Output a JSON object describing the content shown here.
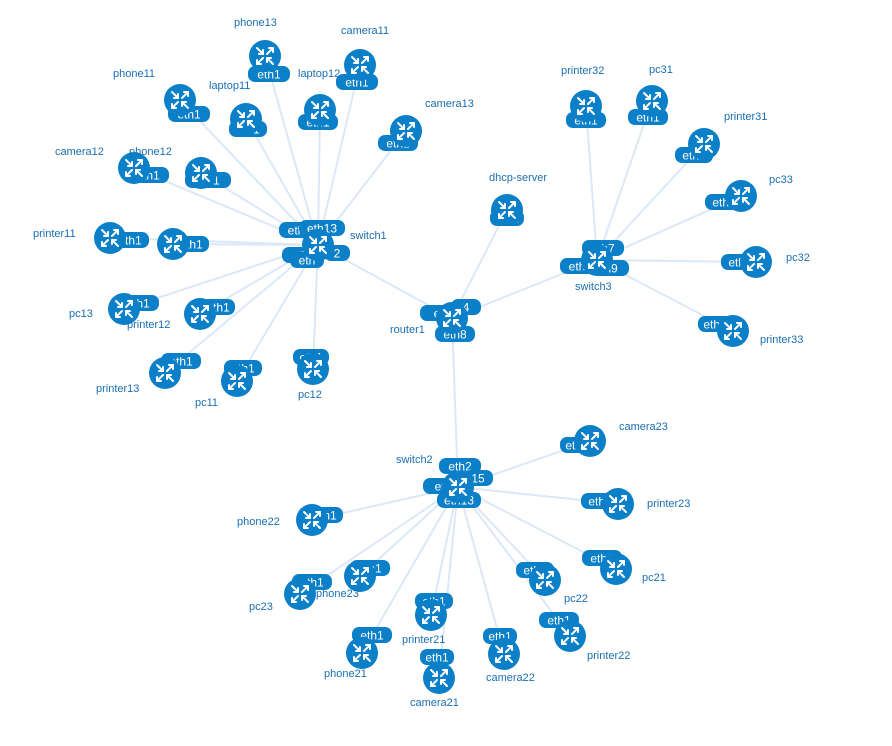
{
  "colors": {
    "node": "#0b7fc7",
    "link": "#dbe8f7",
    "label": "#1a6fb3",
    "iface_text": "#ffffff"
  },
  "icon": "router-arrows-icon",
  "nodes": [
    {
      "id": "switch1",
      "label": "switch1"
    },
    {
      "id": "switch2",
      "label": "switch2"
    },
    {
      "id": "switch3",
      "label": "switch3"
    },
    {
      "id": "router1",
      "label": "router1"
    },
    {
      "id": "dhcp-server",
      "label": "dhcp-server"
    },
    {
      "id": "phone13",
      "label": "phone13"
    },
    {
      "id": "camera11",
      "label": "camera11"
    },
    {
      "id": "phone11",
      "label": "phone11"
    },
    {
      "id": "laptop11",
      "label": "laptop11"
    },
    {
      "id": "laptop12",
      "label": "laptop12"
    },
    {
      "id": "camera13",
      "label": "camera13"
    },
    {
      "id": "camera12",
      "label": "camera12"
    },
    {
      "id": "phone12",
      "label": "phone12"
    },
    {
      "id": "printer11",
      "label": "printer11"
    },
    {
      "id": "laptop13",
      "label": ""
    },
    {
      "id": "pc13",
      "label": "pc13"
    },
    {
      "id": "printer12",
      "label": "printer12"
    },
    {
      "id": "printer13",
      "label": "printer13"
    },
    {
      "id": "pc11",
      "label": "pc11"
    },
    {
      "id": "pc12",
      "label": "pc12"
    },
    {
      "id": "printer32",
      "label": "printer32"
    },
    {
      "id": "pc31",
      "label": "pc31"
    },
    {
      "id": "printer31",
      "label": "printer31"
    },
    {
      "id": "pc33",
      "label": "pc33"
    },
    {
      "id": "pc32",
      "label": "pc32"
    },
    {
      "id": "printer33",
      "label": "printer33"
    },
    {
      "id": "camera23",
      "label": "camera23"
    },
    {
      "id": "printer23",
      "label": "printer23"
    },
    {
      "id": "pc21",
      "label": "pc21"
    },
    {
      "id": "pc22",
      "label": "pc22"
    },
    {
      "id": "printer22",
      "label": "printer22"
    },
    {
      "id": "camera22",
      "label": "camera22"
    },
    {
      "id": "camera21",
      "label": "camera21"
    },
    {
      "id": "printer21",
      "label": "printer21"
    },
    {
      "id": "phone21",
      "label": "phone21"
    },
    {
      "id": "pc23",
      "label": "pc23"
    },
    {
      "id": "phone23",
      "label": "phone23"
    },
    {
      "id": "phone22",
      "label": "phone22"
    }
  ],
  "interfaces": [
    {
      "node": "phone13",
      "label": "eth1"
    },
    {
      "node": "camera11",
      "label": "eth1"
    },
    {
      "node": "phone11",
      "label": "eth1"
    },
    {
      "node": "laptop11",
      "label": "eth1"
    },
    {
      "node": "laptop12",
      "label": "eth1"
    },
    {
      "node": "camera13",
      "label": "eth1"
    },
    {
      "node": "camera12",
      "label": "eth1"
    },
    {
      "node": "phone12",
      "label": "eth1"
    },
    {
      "node": "printer11",
      "label": "eth1"
    },
    {
      "node": "laptop13",
      "label": "eth1"
    },
    {
      "node": "pc13",
      "label": "eth1"
    },
    {
      "node": "printer12",
      "label": "eth1"
    },
    {
      "node": "printer13",
      "label": "eth1"
    },
    {
      "node": "pc11",
      "label": "eth1"
    },
    {
      "node": "pc12",
      "label": "eth1"
    },
    {
      "node": "switch1",
      "label": "eth"
    },
    {
      "node": "switch1",
      "label": "eth13"
    },
    {
      "node": "switch1",
      "label": "eth"
    },
    {
      "node": "switch1",
      "label": "eth"
    },
    {
      "node": "switch1",
      "label": "2"
    },
    {
      "node": "dhcp-server",
      "label": "eth1"
    },
    {
      "node": "router1",
      "label": "eth"
    },
    {
      "node": "router1",
      "label": "4"
    },
    {
      "node": "router1",
      "label": "eth8"
    },
    {
      "node": "printer32",
      "label": "eth1"
    },
    {
      "node": "pc31",
      "label": "eth1"
    },
    {
      "node": "printer31",
      "label": "eth1"
    },
    {
      "node": "pc33",
      "label": "eth1"
    },
    {
      "node": "pc32",
      "label": "eth1"
    },
    {
      "node": "printer33",
      "label": "eth1"
    },
    {
      "node": "switch3",
      "label": "eth7"
    },
    {
      "node": "switch3",
      "label": "eth"
    },
    {
      "node": "switch3",
      "label": "n9"
    },
    {
      "node": "switch2",
      "label": "eth2"
    },
    {
      "node": "switch2",
      "label": "eth"
    },
    {
      "node": "switch2",
      "label": "15"
    },
    {
      "node": "switch2",
      "label": "eth13"
    },
    {
      "node": "camera23",
      "label": "eth1"
    },
    {
      "node": "printer23",
      "label": "eth1"
    },
    {
      "node": "pc21",
      "label": "eth1"
    },
    {
      "node": "pc22",
      "label": "eth1"
    },
    {
      "node": "printer22",
      "label": "eth1"
    },
    {
      "node": "camera22",
      "label": "eth1"
    },
    {
      "node": "camera21",
      "label": "eth1"
    },
    {
      "node": "printer21",
      "label": "eth1"
    },
    {
      "node": "phone21",
      "label": "eth1"
    },
    {
      "node": "phone23",
      "label": "eth1"
    },
    {
      "node": "pc23",
      "label": "eth1"
    },
    {
      "node": "phone22",
      "label": "eth1"
    }
  ],
  "links": [
    [
      "switch1",
      "phone13"
    ],
    [
      "switch1",
      "camera11"
    ],
    [
      "switch1",
      "phone11"
    ],
    [
      "switch1",
      "laptop11"
    ],
    [
      "switch1",
      "laptop12"
    ],
    [
      "switch1",
      "camera13"
    ],
    [
      "switch1",
      "camera12"
    ],
    [
      "switch1",
      "phone12"
    ],
    [
      "switch1",
      "printer11"
    ],
    [
      "switch1",
      "laptop13"
    ],
    [
      "switch1",
      "pc13"
    ],
    [
      "switch1",
      "printer12"
    ],
    [
      "switch1",
      "printer13"
    ],
    [
      "switch1",
      "pc11"
    ],
    [
      "switch1",
      "pc12"
    ],
    [
      "switch1",
      "router1"
    ],
    [
      "router1",
      "dhcp-server"
    ],
    [
      "router1",
      "switch3"
    ],
    [
      "router1",
      "switch2"
    ],
    [
      "switch3",
      "printer32"
    ],
    [
      "switch3",
      "pc31"
    ],
    [
      "switch3",
      "printer31"
    ],
    [
      "switch3",
      "pc33"
    ],
    [
      "switch3",
      "pc32"
    ],
    [
      "switch3",
      "printer33"
    ],
    [
      "switch2",
      "camera23"
    ],
    [
      "switch2",
      "printer23"
    ],
    [
      "switch2",
      "pc21"
    ],
    [
      "switch2",
      "pc22"
    ],
    [
      "switch2",
      "printer22"
    ],
    [
      "switch2",
      "camera22"
    ],
    [
      "switch2",
      "camera21"
    ],
    [
      "switch2",
      "printer21"
    ],
    [
      "switch2",
      "phone21"
    ],
    [
      "switch2",
      "pc23"
    ],
    [
      "switch2",
      "phone23"
    ],
    [
      "switch2",
      "phone22"
    ]
  ]
}
